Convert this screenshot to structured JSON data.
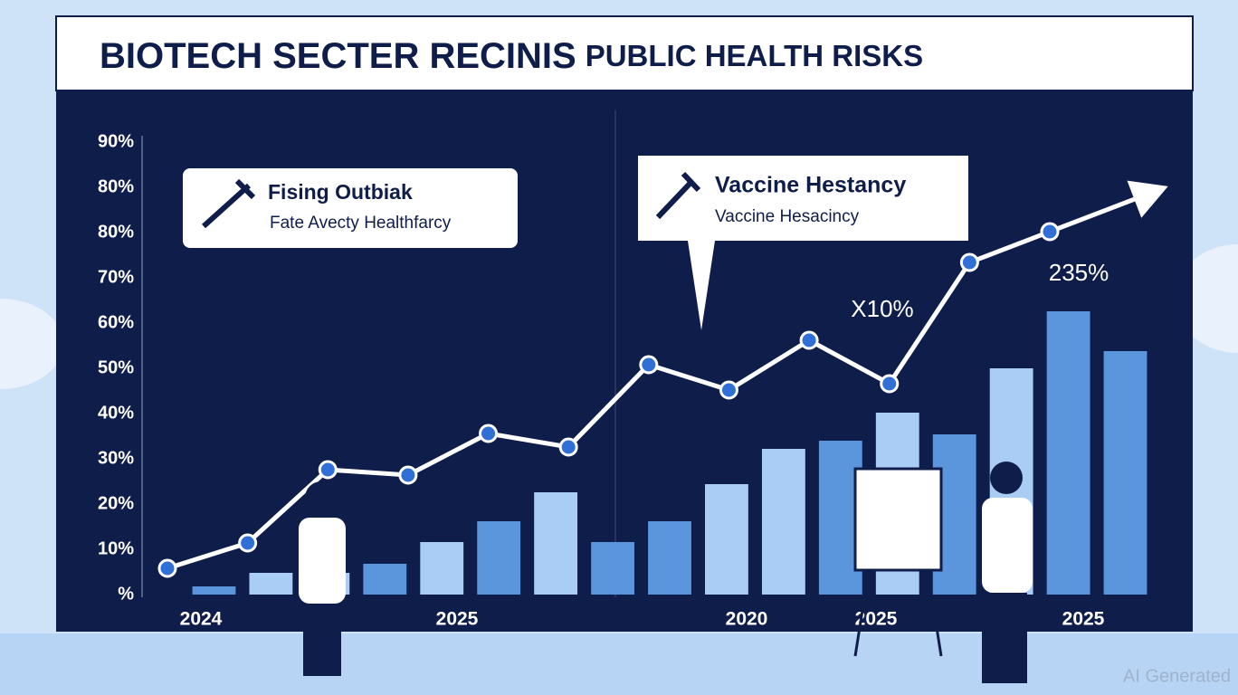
{
  "chart_data": {
    "type": "bar-line",
    "title": "BIOTECH SECTER RECINIS",
    "title_suffix": "PUBLIC HEALTH RISKS",
    "ytick_labels": [
      "90%",
      "80%",
      "80%",
      "70%",
      "60%",
      "50%",
      "40%",
      "30%",
      "20%",
      "10%",
      "%"
    ],
    "x_labels": [
      "2024",
      "2025",
      "2020",
      "2025",
      "2025"
    ],
    "ylim": [
      0,
      100
    ],
    "bars": {
      "values": [
        1.8,
        4.8,
        4.8,
        6.8,
        11.6,
        16.2,
        22.6,
        11.6,
        16.2,
        24.4,
        32.2,
        34,
        40.2,
        35.4,
        50,
        62.6,
        53.8
      ],
      "colors": [
        "#5b95dc",
        "#a9cdf5",
        "#a9cdf5",
        "#5b95dc",
        "#a9cdf5",
        "#5b95dc",
        "#a9cdf5",
        "#5b95dc",
        "#5b95dc",
        "#a9cdf5",
        "#a9cdf5",
        "#5b95dc",
        "#a9cdf5",
        "#5b95dc",
        "#a9cdf5",
        "#5b95dc",
        "#5b95dc"
      ]
    },
    "line": {
      "values": [
        5.8,
        11.4,
        27.6,
        26.4,
        35.6,
        32.6,
        50.8,
        45.2,
        56.2,
        46.6,
        73.4,
        80.2
      ],
      "color": "#ffffff",
      "marker_color": "#2f6fd6"
    },
    "callouts": [
      {
        "title": "Fising Outbiak",
        "text": "Fate Avecty Healthfarcy"
      },
      {
        "title": "Vaccine Hestancy",
        "text": "Vaccine Hesacincy"
      }
    ],
    "annotations": [
      "X10%",
      "235%"
    ],
    "watermark": "AI Generated"
  }
}
